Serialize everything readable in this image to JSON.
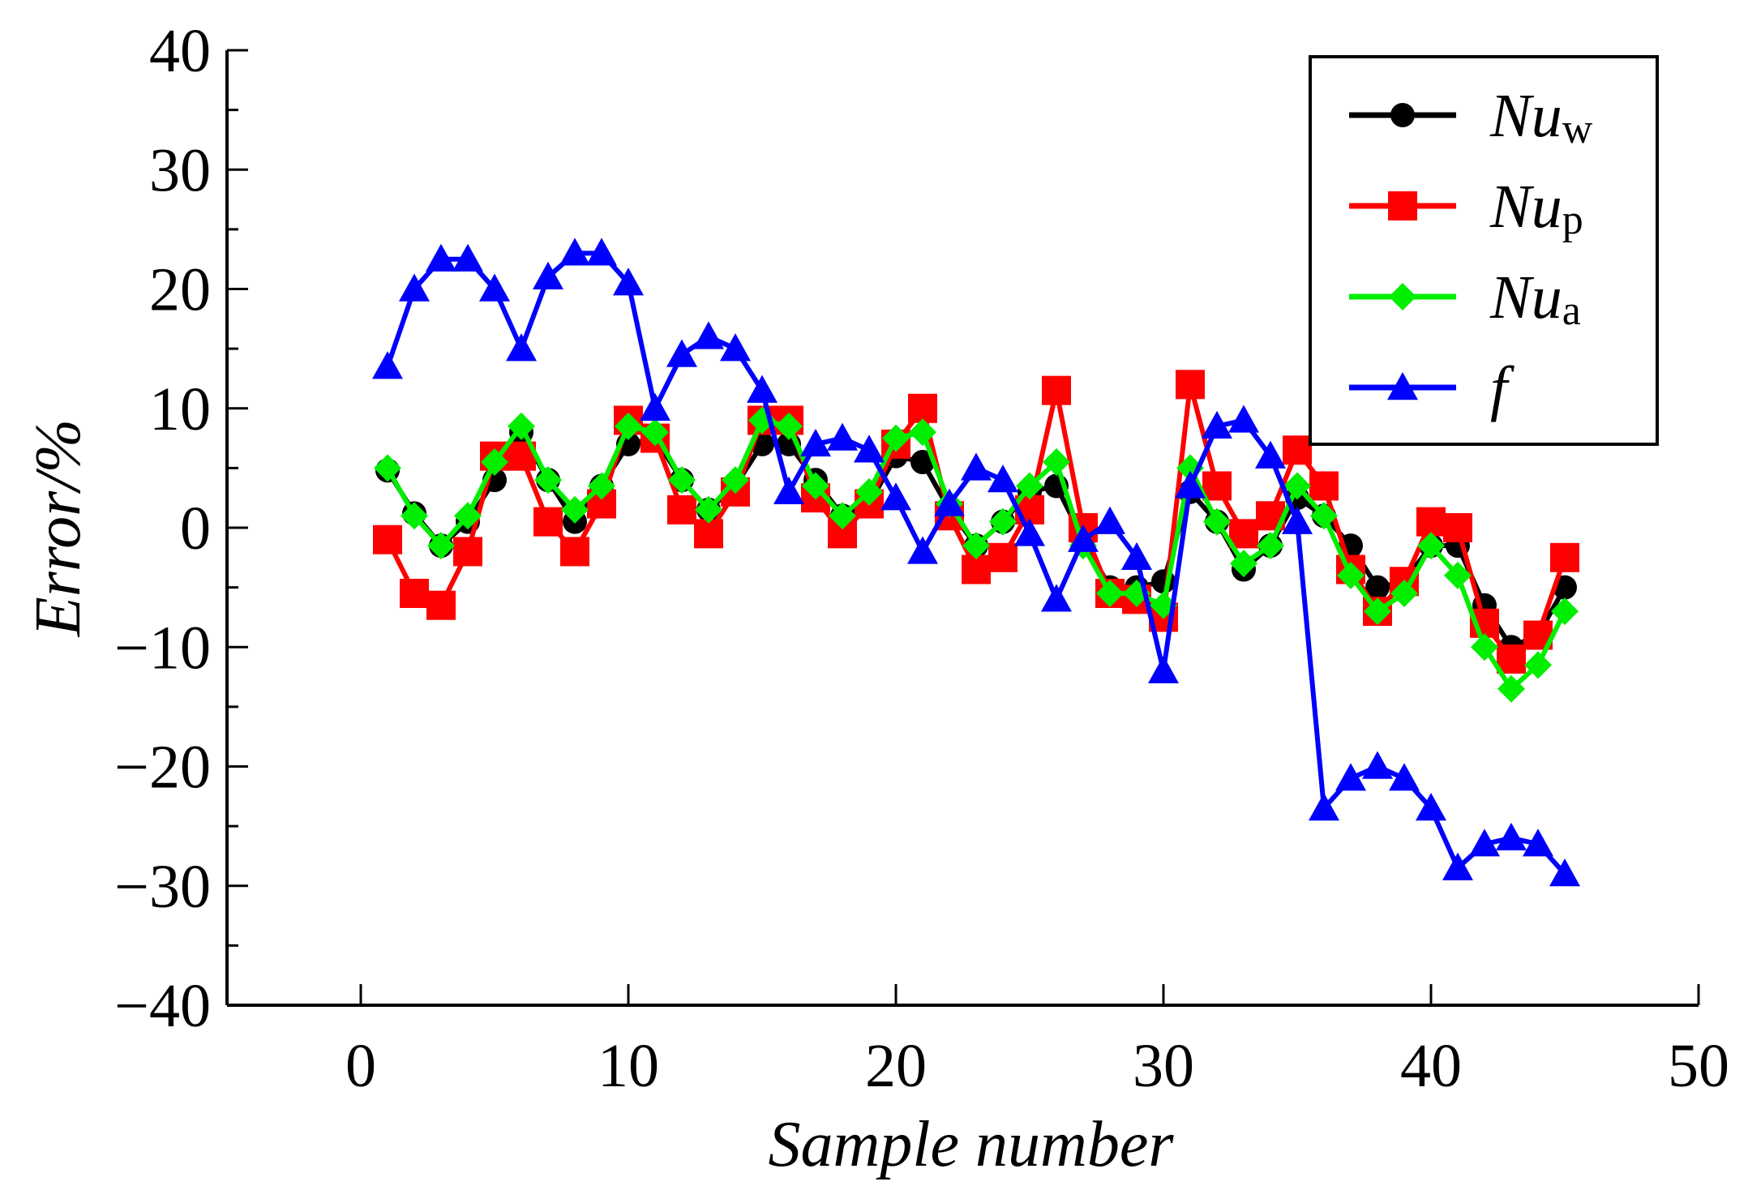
{
  "chart_data": {
    "type": "line",
    "title": "",
    "xlabel": "Sample number",
    "ylabel": "Error/%",
    "xlim": [
      -5,
      50
    ],
    "ylim": [
      -40,
      40
    ],
    "xticks": [
      0,
      10,
      20,
      30,
      40,
      50
    ],
    "xtick_labels": [
      "0",
      "10",
      "20",
      "30",
      "40",
      "50"
    ],
    "yticks": [
      -40,
      -30,
      -20,
      -10,
      0,
      10,
      20,
      30,
      40
    ],
    "ytick_labels": [
      "−40",
      "−30",
      "−20",
      "−10",
      "0",
      "10",
      "20",
      "30",
      "40"
    ],
    "grid": false,
    "legend_position": "top-right",
    "x": [
      1,
      2,
      3,
      4,
      5,
      6,
      7,
      8,
      9,
      10,
      11,
      12,
      13,
      14,
      15,
      16,
      17,
      18,
      19,
      20,
      21,
      22,
      23,
      24,
      25,
      26,
      27,
      28,
      29,
      30,
      31,
      32,
      33,
      34,
      35,
      36,
      37,
      38,
      39,
      40,
      41,
      42,
      43,
      44,
      45
    ],
    "series": [
      {
        "name": "Nuw",
        "label_main": "Nu",
        "label_sub": "w",
        "color": "#000000",
        "marker": "circle",
        "values": [
          4.8,
          1.2,
          -1.5,
          0.5,
          4,
          8,
          4,
          0.5,
          3.5,
          7,
          7.5,
          4,
          1.5,
          3.5,
          7,
          7,
          4,
          1,
          2,
          6,
          5.5,
          1.5,
          -1.5,
          0.5,
          3,
          3.5,
          -1,
          -5,
          -5,
          -4.5,
          3,
          0.5,
          -3.5,
          -1.5,
          2.5,
          1,
          -1.5,
          -5,
          -4.5,
          -1.5,
          -1.5,
          -6.5,
          -10,
          -9,
          -5
        ]
      },
      {
        "name": "Nup",
        "label_main": "Nu",
        "label_sub": "p",
        "color": "#ff0000",
        "marker": "square",
        "values": [
          -1,
          -5.5,
          -6.5,
          -2,
          6,
          6,
          0.5,
          -2,
          2,
          9,
          7.5,
          1.5,
          -0.5,
          3,
          9,
          9,
          2.5,
          -0.5,
          2,
          7,
          10,
          1,
          -3.5,
          -2.5,
          1.5,
          11.5,
          0,
          -5.5,
          -6,
          -7.5,
          12,
          3.5,
          -0.5,
          1,
          6.5,
          3.5,
          -3.5,
          -7,
          -4.5,
          0.5,
          0,
          -8,
          -11,
          -9,
          -2.5
        ]
      },
      {
        "name": "Nua",
        "label_main": "Nu",
        "label_sub": "a",
        "color": "#00ee00",
        "marker": "diamond",
        "values": [
          5,
          1,
          -1.5,
          1,
          5.5,
          8.5,
          4,
          1.5,
          3.5,
          8.5,
          8,
          4,
          1.5,
          4,
          9,
          8.5,
          3.5,
          1,
          3,
          7.5,
          8,
          2,
          -1.5,
          0.5,
          3.5,
          5.5,
          -1.5,
          -5.5,
          -5.5,
          -6.5,
          5,
          0.5,
          -3,
          -1.5,
          3.5,
          1,
          -4,
          -7,
          -5.5,
          -1.5,
          -4,
          -10,
          -13.5,
          -11.5,
          -7
        ]
      },
      {
        "name": "f",
        "label_main": "f",
        "label_sub": "",
        "color": "#0000ff",
        "marker": "triangle",
        "values": [
          13.5,
          20,
          22.5,
          22.5,
          20,
          15,
          21,
          23,
          23,
          20.5,
          10,
          14.5,
          16,
          15,
          11.5,
          3,
          7,
          7.5,
          6.5,
          2.5,
          -2,
          2,
          5,
          4,
          -0.5,
          -6,
          -1,
          0.5,
          -2.5,
          -12,
          3.5,
          8.5,
          9,
          6,
          0.5,
          -23.5,
          -21,
          -20,
          -21,
          -23.5,
          -28.5,
          -26.5,
          -26,
          -26.5,
          -29
        ]
      }
    ]
  }
}
